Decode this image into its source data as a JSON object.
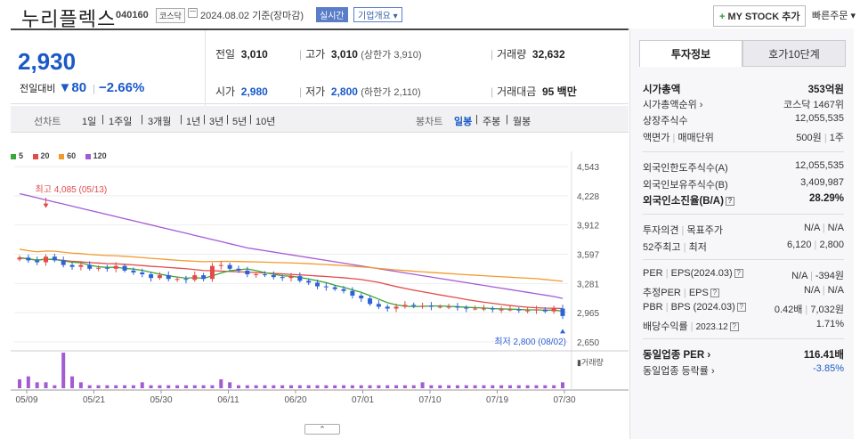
{
  "header": {
    "name": "누리플렉스",
    "code": "040160",
    "market": "코스닥",
    "date": "2024.08.02 기준(장마감)",
    "realtime": "실시간",
    "overview": "기업개요 ▾",
    "mystock": "MY STOCK 추가",
    "mystock_plus": "+",
    "quick_order": "빠른주문 ▾"
  },
  "price": {
    "current": "2,930",
    "change_label": "전일대비",
    "change_arrow": "▼",
    "change_value": "80",
    "change_pct": "−2.66%",
    "prev_label": "전일",
    "prev": "3,010",
    "high_label": "고가",
    "high": "3,010",
    "upper_limit": "(상한가 3,910)",
    "volume_label": "거래량",
    "volume": "32,632",
    "open_label": "시가",
    "open": "2,980",
    "low_label": "저가",
    "low": "2,800",
    "lower_limit": "(하한가 2,110)",
    "amount_label": "거래대금",
    "amount": "95 백만"
  },
  "period_bar": {
    "line_label": "선차트",
    "line_options": [
      "1일",
      "1주일",
      "3개월",
      "1년",
      "3년",
      "5년",
      "10년"
    ],
    "candle_label": "봉차트",
    "candle_options": [
      "일봉",
      "주봉",
      "월봉"
    ],
    "active_candle": "일봉"
  },
  "legend": [
    {
      "label": "5",
      "color": "#3aa63a"
    },
    {
      "label": "20",
      "color": "#e34a4a"
    },
    {
      "label": "60",
      "color": "#f39a2e"
    },
    {
      "label": "120",
      "color": "#a35bd4"
    }
  ],
  "chart_data": {
    "type": "candlestick",
    "x_ticks": [
      "05/09",
      "05/21",
      "05/30",
      "06/11",
      "06/20",
      "07/01",
      "07/10",
      "07/19",
      "07/30"
    ],
    "y_ticks": [
      "4,543",
      "4,228",
      "3,912",
      "3,597",
      "3,281",
      "2,965",
      "2,650"
    ],
    "ylim": [
      2650,
      4543
    ],
    "max_annotation": "최고 4,085 (05/13)",
    "min_annotation": "최저 2,800 (08/02)",
    "volume_label": "거래량",
    "closes": [
      3560,
      3530,
      3510,
      3570,
      3530,
      3480,
      3460,
      3480,
      3440,
      3450,
      3440,
      3470,
      3420,
      3400,
      3380,
      3340,
      3370,
      3330,
      3330,
      3320,
      3370,
      3330,
      3470,
      3480,
      3440,
      3420,
      3380,
      3380,
      3370,
      3350,
      3340,
      3360,
      3310,
      3290,
      3250,
      3240,
      3220,
      3200,
      3150,
      3120,
      3060,
      3030,
      3010,
      3030,
      3050,
      3040,
      3040,
      3030,
      3030,
      3030,
      3020,
      3010,
      3010,
      3010,
      3000,
      3000,
      3000,
      2990,
      2990,
      3000,
      2980,
      3010,
      2930
    ],
    "ma120": [
      4250,
      4228,
      4205,
      4183,
      4160,
      4138,
      4115,
      4093,
      4070,
      4048,
      4025,
      4003,
      3980,
      3958,
      3935,
      3913,
      3890,
      3868,
      3845,
      3823,
      3800,
      3778,
      3755,
      3733,
      3710,
      3688,
      3665,
      3650,
      3635,
      3620,
      3605,
      3590,
      3575,
      3560,
      3545,
      3530,
      3515,
      3500,
      3485,
      3470,
      3455,
      3440,
      3425,
      3410,
      3395,
      3380,
      3365,
      3350,
      3335,
      3320,
      3305,
      3290,
      3275,
      3260,
      3245,
      3230,
      3215,
      3200,
      3185,
      3170,
      3155,
      3140,
      3120
    ],
    "volumes": [
      3,
      4,
      2,
      2,
      1,
      12,
      4,
      2,
      1,
      1,
      1,
      1,
      1,
      1,
      2,
      1,
      1,
      1,
      1,
      1,
      1,
      1,
      1,
      3,
      2,
      1,
      1,
      1,
      1,
      1,
      1,
      1,
      1,
      1,
      1,
      1,
      1,
      1,
      1,
      1,
      1,
      1,
      1,
      1,
      1,
      1,
      2,
      1,
      1,
      1,
      1,
      1,
      1,
      1,
      1,
      1,
      1,
      1,
      1,
      1,
      1,
      1,
      2
    ]
  },
  "side": {
    "tab_active": "투자정보",
    "tab_other": "호가10단계",
    "market_cap_label": "시가총액",
    "market_cap": "353억원",
    "cap_rank_label": "시가총액순위 ›",
    "cap_rank": "코스닥 1467위",
    "shares_label": "상장주식수",
    "shares": "12,055,535",
    "par_label": "액면가",
    "par_sep": "매매단위",
    "par": "500원",
    "unit": "1주",
    "foreign_limit_label": "외국인한도주식수(A)",
    "foreign_limit": "12,055,535",
    "foreign_hold_label": "외국인보유주식수(B)",
    "foreign_hold": "3,409,987",
    "foreign_ratio_label": "외국인소진율(B/A)",
    "foreign_ratio": "28.29%",
    "opinion_label": "투자의견",
    "target_label": "목표주가",
    "opinion": "N/A",
    "target": "N/A",
    "wk52_label": "52주최고",
    "wk52_low_label": "최저",
    "wk52_high": "6,120",
    "wk52_low": "2,800",
    "per_label": "PER",
    "eps_label": "EPS(2024.03)",
    "per": "N/A",
    "eps": "-394원",
    "est_per_label": "추정PER",
    "est_eps_label": "EPS",
    "est_per": "N/A",
    "est_eps": "N/A",
    "pbr_label": "PBR",
    "bps_label": "BPS (2024.03)",
    "pbr": "0.42배",
    "bps": "7,032원",
    "div_label": "배당수익률",
    "div_date": "2023.12",
    "div": "1.71%",
    "industry_per_label": "동일업종 PER ›",
    "industry_per": "116.41배",
    "industry_chg_label": "동일업종 등락률 ›",
    "industry_chg": "-3.85%"
  },
  "collapse_icon": "⌃"
}
